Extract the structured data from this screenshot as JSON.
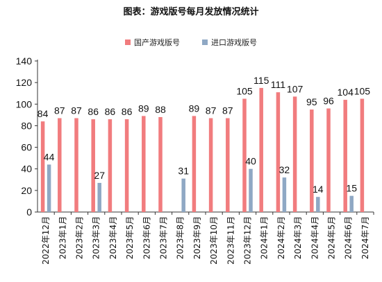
{
  "colors": {
    "domestic": "#F17C7E",
    "imported": "#8FA8C4",
    "axis": "#333333",
    "label": "#111111"
  },
  "chart_data": {
    "type": "bar",
    "title": "图表：游戏版号每月发放情况统计",
    "xlabel": "",
    "ylabel": "",
    "ylim": [
      0,
      140
    ],
    "yticks": [
      0,
      20,
      40,
      60,
      80,
      100,
      120,
      140
    ],
    "legend_position": "top",
    "grid": false,
    "categories": [
      "2022年12月",
      "2023年1月",
      "2023年2月",
      "2023年3月",
      "2023年4月",
      "2023年5月",
      "2023年6月",
      "2023年7月",
      "2023年8月",
      "2023年9月",
      "2023年10月",
      "2023年11月",
      "2023年12月",
      "2024年1月",
      "2024年2月",
      "2024年3月",
      "2024年4月",
      "2024年5月",
      "2024年6月",
      "2024年7月"
    ],
    "series": [
      {
        "name": "国产游戏版号",
        "color_key": "domestic",
        "values": [
          84,
          87,
          87,
          86,
          86,
          86,
          89,
          88,
          null,
          89,
          87,
          87,
          105,
          115,
          111,
          107,
          95,
          96,
          104,
          105
        ]
      },
      {
        "name": "进口游戏版号",
        "color_key": "imported",
        "values": [
          44,
          null,
          null,
          27,
          null,
          null,
          null,
          null,
          31,
          null,
          null,
          null,
          40,
          null,
          32,
          null,
          14,
          null,
          15,
          null
        ]
      }
    ]
  }
}
